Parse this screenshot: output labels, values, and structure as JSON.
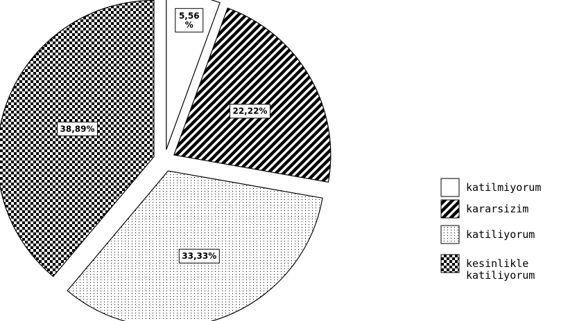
{
  "chart_data": {
    "type": "pie",
    "title": "",
    "slices": [
      {
        "label": "katilmiyorum",
        "value": 5.56,
        "display": "5,56\n%",
        "pattern": "plain"
      },
      {
        "label": "kararsizim",
        "value": 22.22,
        "display": "22,22%",
        "pattern": "diagonal-stripes"
      },
      {
        "label": "katiliyorum",
        "value": 33.33,
        "display": "33,33%",
        "pattern": "vertical-dots"
      },
      {
        "label": "kesinlikle katiliyorum",
        "value": 38.89,
        "display": "38,89%",
        "pattern": "checkerboard"
      }
    ],
    "start_angle": "top",
    "direction": "clockwise",
    "exploded": true,
    "legend": {
      "position": "right",
      "entries": [
        "katilmiyorum",
        "kararsizim",
        "katiliyorum",
        "kesinlikle katiliyorum"
      ]
    }
  }
}
